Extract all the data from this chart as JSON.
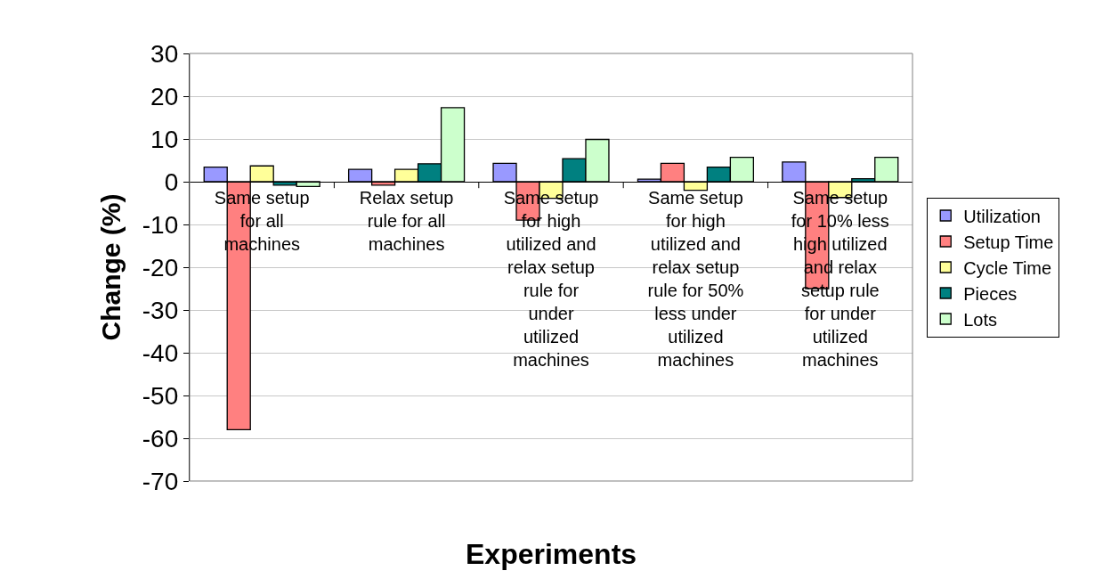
{
  "chart_data": {
    "type": "bar",
    "xlabel": "Experiments",
    "ylabel": "Change (%)",
    "categories": [
      "Same setup for all machines",
      "Relax setup rule for all machines",
      "Same setup for high utilized and relax setup rule for under utilized machines",
      "Same setup for high utilized and relax setup rule for 50% less under utilized machines",
      "Same setup for 10% less high utilized and relax setup rule for under utilized machines"
    ],
    "series": [
      {
        "name": "Utilization",
        "color": "#9999ff",
        "values": [
          3.4,
          2.9,
          4.3,
          0.6,
          4.6
        ]
      },
      {
        "name": "Setup Time",
        "color": "#ff8080",
        "values": [
          -58,
          -0.8,
          -9,
          4.3,
          -25
        ]
      },
      {
        "name": "Cycle Time",
        "color": "#ffff99",
        "values": [
          3.7,
          2.9,
          -3.9,
          -2,
          -3.7
        ]
      },
      {
        "name": "Pieces",
        "color": "#008080",
        "values": [
          -0.8,
          4.2,
          5.4,
          3.4,
          0.7
        ]
      },
      {
        "name": "Lots",
        "color": "#ccffcc",
        "values": [
          -1.1,
          17.3,
          9.9,
          5.7,
          5.7
        ]
      }
    ],
    "ylim": [
      -70,
      30
    ],
    "yticks": [
      -70,
      -60,
      -50,
      -40,
      -30,
      -20,
      -10,
      0,
      10,
      20,
      30
    ],
    "grid": "y",
    "legend": "right"
  }
}
